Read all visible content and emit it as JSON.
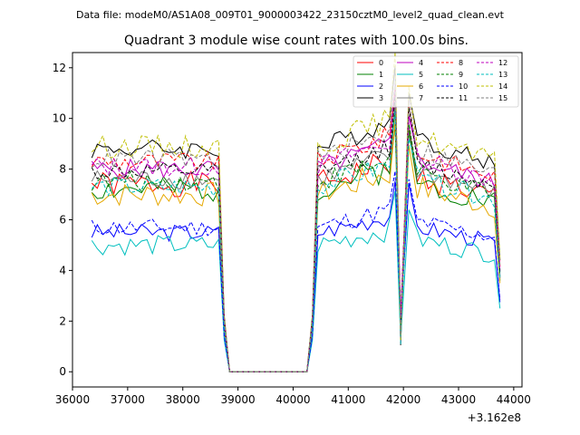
{
  "figure": {
    "suptitle": "Data file: modeM0/AS1A08_009T01_9000003422_23150cztM0_level2_quad_clean.evt"
  },
  "chart_data": {
    "type": "line",
    "title": "Quadrant 3 module wise count rates with 100.0s bins.",
    "xlabel": "",
    "ylabel": "",
    "x_offset_label": "+3.162e8",
    "xlim": [
      36000,
      44150
    ],
    "ylim": [
      -0.6,
      12.6
    ],
    "xticks": [
      36000,
      37000,
      38000,
      39000,
      40000,
      41000,
      42000,
      43000,
      44000
    ],
    "xtick_labels": [
      "36000",
      "37000",
      "38000",
      "39000",
      "40000",
      "41000",
      "42000",
      "43000",
      "44000"
    ],
    "yticks": [
      0,
      2,
      4,
      6,
      8,
      10,
      12
    ],
    "ytick_labels": [
      "0",
      "2",
      "4",
      "6",
      "8",
      "10",
      "12"
    ],
    "grid": false,
    "legend_position": "top-right",
    "legend_columns": 4,
    "series": [
      {
        "name": "0",
        "color": "#ff0000",
        "style": "solid",
        "level": 7.4,
        "base": 7.4,
        "amp": 0.5,
        "seed": 1
      },
      {
        "name": "1",
        "color": "#008000",
        "style": "solid",
        "level": 7.2,
        "base": 7.2,
        "amp": 0.5,
        "seed": 2
      },
      {
        "name": "2",
        "color": "#0000ff",
        "style": "solid",
        "level": 5.5,
        "base": 5.5,
        "amp": 0.35,
        "seed": 3
      },
      {
        "name": "3",
        "color": "#000000",
        "style": "solid",
        "level": 8.8,
        "base": 8.8,
        "amp": 0.4,
        "seed": 4
      },
      {
        "name": "4",
        "color": "#bf00bf",
        "style": "solid",
        "level": 8.0,
        "base": 8.0,
        "amp": 0.4,
        "seed": 5
      },
      {
        "name": "5",
        "color": "#00bfbf",
        "style": "solid",
        "level": 5.0,
        "base": 5.0,
        "amp": 0.4,
        "seed": 6
      },
      {
        "name": "6",
        "color": "#e6a800",
        "style": "solid",
        "level": 7.0,
        "base": 7.0,
        "amp": 0.5,
        "seed": 7
      },
      {
        "name": "7",
        "color": "#808080",
        "style": "solid",
        "level": 7.6,
        "base": 7.6,
        "amp": 0.4,
        "seed": 8
      },
      {
        "name": "8",
        "color": "#ff0000",
        "style": "dashed",
        "level": 8.3,
        "base": 8.3,
        "amp": 0.4,
        "seed": 9
      },
      {
        "name": "9",
        "color": "#008000",
        "style": "dashed",
        "level": 7.5,
        "base": 7.5,
        "amp": 0.4,
        "seed": 10
      },
      {
        "name": "10",
        "color": "#0000ff",
        "style": "dashed",
        "level": 5.7,
        "base": 5.7,
        "amp": 0.35,
        "seed": 11
      },
      {
        "name": "11",
        "color": "#000000",
        "style": "dashed",
        "level": 7.9,
        "base": 7.9,
        "amp": 0.35,
        "seed": 12
      },
      {
        "name": "12",
        "color": "#bf00bf",
        "style": "dashed",
        "level": 8.1,
        "base": 8.1,
        "amp": 0.4,
        "seed": 13
      },
      {
        "name": "13",
        "color": "#00bfbf",
        "style": "dashed",
        "level": 7.3,
        "base": 7.3,
        "amp": 0.4,
        "seed": 14
      },
      {
        "name": "14",
        "color": "#bfbf00",
        "style": "dashed",
        "level": 8.9,
        "base": 8.9,
        "amp": 0.45,
        "seed": 15
      },
      {
        "name": "15",
        "color": "#808080",
        "style": "dashed",
        "level": 8.4,
        "base": 8.4,
        "amp": 0.4,
        "seed": 16
      }
    ],
    "segments": {
      "bin_width": 100,
      "first_on": [
        36350,
        38650
      ],
      "gap_zero": [
        38850,
        40250
      ],
      "second_on": [
        40450,
        41750
      ],
      "spike_high_x": 41850,
      "dip_x": 41950,
      "spike2_x": 42100,
      "third_on": [
        42150,
        43650
      ],
      "end_x": 43750
    }
  }
}
